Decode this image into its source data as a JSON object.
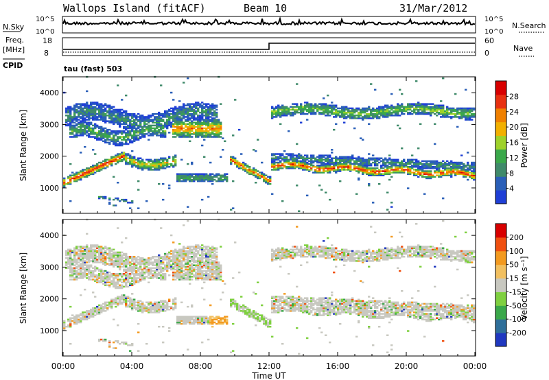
{
  "header": {
    "station": "Wallops Island (fitACF)",
    "beam": "Beam 10",
    "date": "31/Mar/2012"
  },
  "panels": {
    "nsky": {
      "label": "N.Sky",
      "tick_top": "10^5",
      "tick_bottom": "10^0",
      "right_label": "N.Search",
      "right_tick_top": "10^5",
      "right_tick_bottom": "10^0"
    },
    "freq": {
      "label_line1": "Freq.",
      "label_line2": "[MHz]",
      "tick_top": "18",
      "tick_bottom": "8",
      "right_label": "Nave",
      "right_tick_top": "60",
      "right_tick_bottom": "0",
      "cpid_label": "CPID"
    },
    "cpid_text": "tau (fast) 503"
  },
  "colors": {
    "power_scale": [
      "#1f3fd6",
      "#2a5fb8",
      "#3f8a6a",
      "#3aa84a",
      "#9fd22a",
      "#f2b000",
      "#f08000",
      "#e83010",
      "#d80000"
    ],
    "velocity_scale": [
      "#d80000",
      "#f05010",
      "#f39a20",
      "#f2c060",
      "#c8c8c0",
      "#7fd040",
      "#3aa84a",
      "#2f6f9a",
      "#2038c0"
    ]
  },
  "chart_data": [
    {
      "type": "heatmap",
      "name": "power",
      "ylabel": "Slant Range [km]",
      "xlabel": "Time UT",
      "xlim": [
        0,
        24
      ],
      "ylim": [
        200,
        4500
      ],
      "yticks": [
        1000,
        2000,
        3000,
        4000
      ],
      "colorbar": {
        "label": "Power [dB]",
        "ticks": [
          "4",
          "8",
          "12",
          "16",
          "20",
          "24",
          "28"
        ],
        "range": [
          0,
          30
        ]
      },
      "features": [
        {
          "t": [
            0,
            3.5
          ],
          "range_start": [
            1150,
            2000
          ],
          "label": "band1"
        },
        {
          "t": [
            9.5,
            12.0
          ],
          "range_start": [
            1900,
            1200
          ],
          "label": "descending"
        },
        {
          "t": [
            12.0,
            24.0
          ],
          "range_start": [
            1700,
            1400
          ],
          "label": "band2"
        },
        {
          "t": [
            6.5,
            9.0
          ],
          "range_start": [
            2900,
            2900
          ],
          "label": "patch"
        },
        {
          "t": [
            12.0,
            24.0
          ],
          "range_start": [
            3400,
            3400
          ],
          "label": "upper"
        }
      ]
    },
    {
      "type": "heatmap",
      "name": "velocity",
      "ylabel": "Slant Range [km]",
      "xlabel": "Time UT",
      "xlim": [
        0,
        24
      ],
      "ylim": [
        200,
        4500
      ],
      "yticks": [
        1000,
        2000,
        3000,
        4000
      ],
      "colorbar": {
        "label": "Velocity [m s⁻¹]",
        "ticks": [
          "200",
          "100",
          "50",
          "15",
          "-15",
          "-50",
          "-100",
          "-200"
        ],
        "range": [
          -250,
          250
        ]
      }
    }
  ],
  "time_axis": {
    "ticks": [
      "00:00",
      "04:00",
      "08:00",
      "12:00",
      "16:00",
      "20:00",
      "00:00"
    ],
    "label": "Time UT"
  }
}
